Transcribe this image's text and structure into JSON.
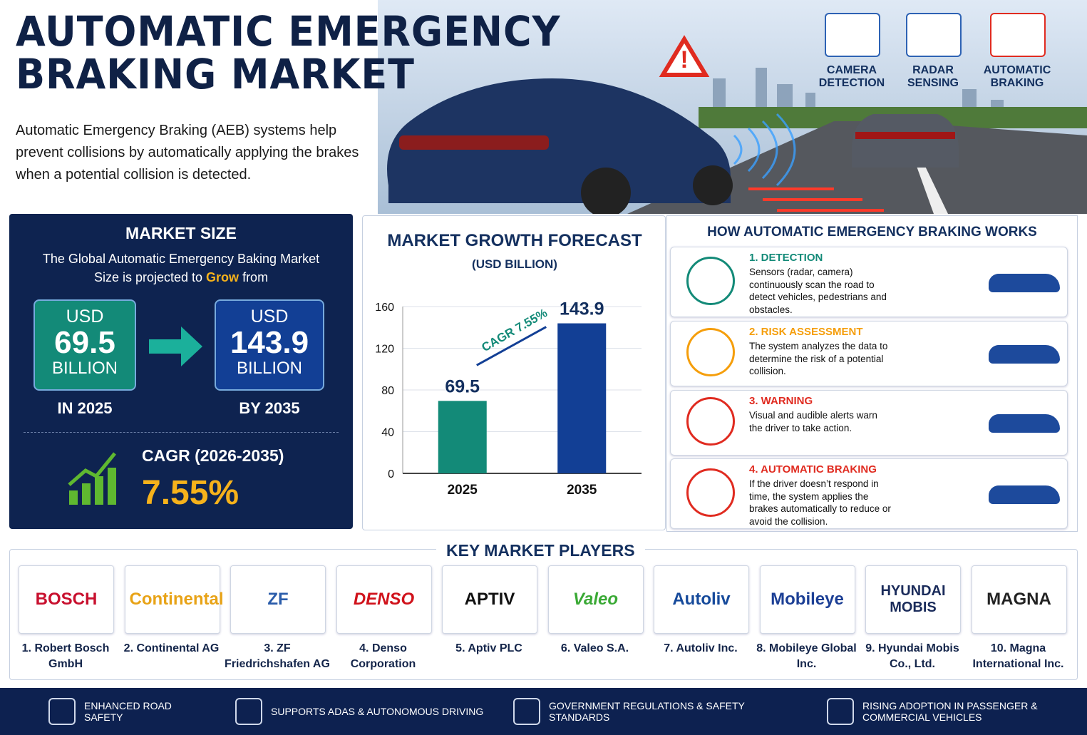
{
  "header": {
    "title_lines": [
      "AUTOMATIC EMERGENCY",
      "BRAKING MARKET"
    ],
    "description": "Automatic Emergency Braking (AEB) systems help prevent collisions by automatically applying the brakes when a potential collision is detected."
  },
  "features": [
    "CAMERA DETECTION",
    "RADAR SENSING",
    "AUTOMATIC BRAKING"
  ],
  "market_size": {
    "heading": "MARKET SIZE",
    "intro": "The Global Automatic Emergency Baking Market Size is projected to",
    "highlight": "Grow",
    "tail": "from",
    "start": {
      "unit": "USD",
      "value": "69.5",
      "scale": "BILLION",
      "when": "IN 2025"
    },
    "end": {
      "unit": "USD",
      "value": "143.9",
      "scale": "BILLION",
      "when": "BY 2035"
    },
    "cagr_label": "CAGR (2026-2035)",
    "cagr": "7.55%"
  },
  "chart_data": {
    "type": "bar",
    "title": "MARKET GROWTH FORECAST",
    "subtitle": "(USD BILLION)",
    "categories": [
      "2025",
      "2035"
    ],
    "values": [
      69.5,
      143.9
    ],
    "colors": [
      "#138a78",
      "#123f95"
    ],
    "ylim": [
      0,
      160
    ],
    "yticks": [
      0,
      40,
      80,
      120,
      160
    ],
    "grid": true,
    "annotation": "CAGR 7.55%"
  },
  "how_it_works": {
    "title": "HOW AUTOMATIC EMERGENCY BRAKING WORKS",
    "steps": [
      {
        "title": "1. DETECTION",
        "text": "Sensors (radar, camera) continuously scan the road to detect vehicles, pedestrians and obstacles."
      },
      {
        "title": "2. RISK ASSESSMENT",
        "text": "The system analyzes the data to determine the risk of a potential collision."
      },
      {
        "title": "3. WARNING",
        "text": "Visual and audible alerts warn the driver to take action."
      },
      {
        "title": "4. AUTOMATIC BRAKING",
        "text": "If the driver doesn’t respond in time, the system applies the brakes automatically to reduce or avoid the collision."
      }
    ]
  },
  "players": {
    "title": "KEY MARKET PLAYERS",
    "list": [
      {
        "logo": "BOSCH",
        "name": "1. Robert Bosch GmbH"
      },
      {
        "logo": "Continental",
        "name": "2. Continental AG"
      },
      {
        "logo": "ZF",
        "name": "3. ZF Friedrichshafen AG"
      },
      {
        "logo": "DENSO",
        "name": "4. Denso Corporation"
      },
      {
        "logo": "APTIV",
        "name": "5. Aptiv PLC"
      },
      {
        "logo": "Valeo",
        "name": "6. Valeo S.A."
      },
      {
        "logo": "Autoliv",
        "name": "7. Autoliv Inc."
      },
      {
        "logo": "Mobileye",
        "name": "8. Mobileye Global Inc."
      },
      {
        "logo": "HYUNDAI MOBIS",
        "name": "9. Hyundai Mobis Co., Ltd."
      },
      {
        "logo": "MAGNA",
        "name": "10. Magna International Inc."
      }
    ]
  },
  "footer": [
    "ENHANCED ROAD SAFETY",
    "SUPPORTS ADAS & AUTONOMOUS DRIVING",
    "GOVERNMENT REGULATIONS & SAFETY STANDARDS",
    "RISING ADOPTION IN PASSENGER & COMMERCIAL VEHICLES"
  ]
}
